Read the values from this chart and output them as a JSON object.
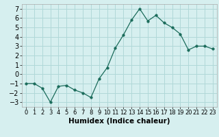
{
  "x": [
    0,
    1,
    2,
    3,
    4,
    5,
    6,
    7,
    8,
    9,
    10,
    11,
    12,
    13,
    14,
    15,
    16,
    17,
    18,
    19,
    20,
    21,
    22,
    23
  ],
  "y": [
    -1.0,
    -1.0,
    -1.5,
    -3.0,
    -1.3,
    -1.2,
    -1.7,
    -2.0,
    -2.5,
    -0.5,
    0.7,
    2.8,
    4.2,
    5.8,
    7.0,
    5.7,
    6.3,
    5.5,
    5.0,
    4.3,
    2.6,
    3.0,
    3.0,
    2.7
  ],
  "xlabel": "Humidex (Indice chaleur)",
  "ylim": [
    -3.5,
    7.5
  ],
  "xlim": [
    -0.5,
    23.5
  ],
  "line_color": "#1a6b5a",
  "marker_color": "#1a6b5a",
  "bg_color": "#d6efef",
  "grid_color": "#b0d8d8",
  "yticks": [
    -3,
    -2,
    -1,
    0,
    1,
    2,
    3,
    4,
    5,
    6,
    7
  ],
  "xticks": [
    0,
    1,
    2,
    3,
    4,
    5,
    6,
    7,
    8,
    9,
    10,
    11,
    12,
    13,
    14,
    15,
    16,
    17,
    18,
    19,
    20,
    21,
    22,
    23
  ],
  "xlabel_fontsize": 7.5,
  "tick_fontsize_x": 6.0,
  "tick_fontsize_y": 7.0
}
